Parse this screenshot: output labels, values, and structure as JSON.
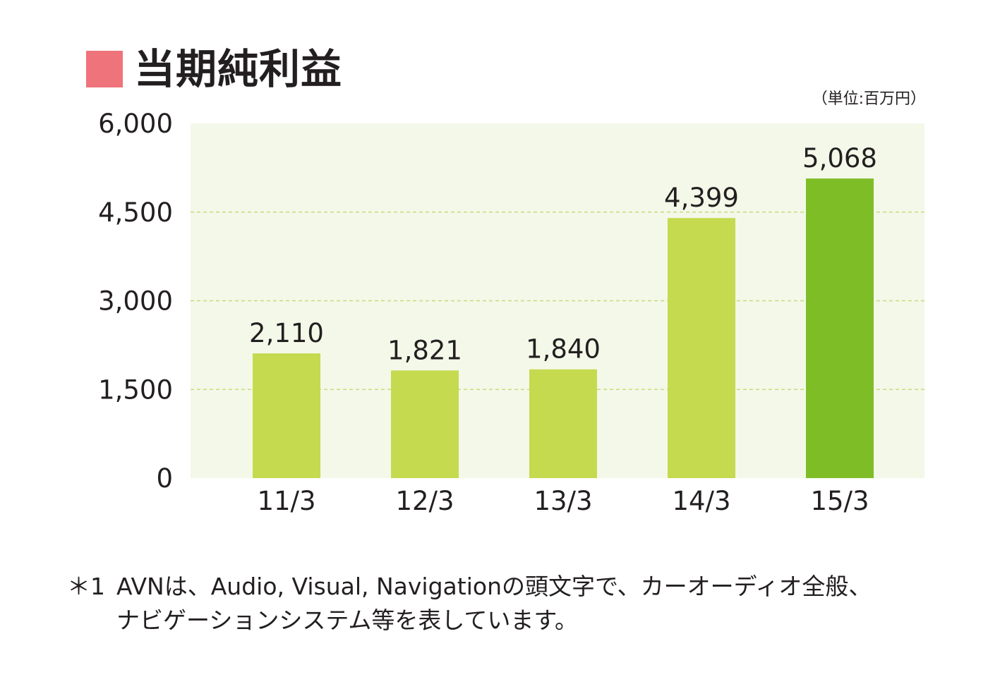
{
  "title": "当期純利益",
  "unit_label": "（単位:百万円）",
  "colors": {
    "title_marker": "#ee737a",
    "plot_background": "#f3f8e9",
    "gridline": "#c8dc7a",
    "bar": "#c5da4f",
    "bar_highlight": "#7fbd27",
    "text": "#231f20"
  },
  "chart_data": {
    "type": "bar",
    "title": "当期純利益",
    "xlabel": "",
    "ylabel": "",
    "categories": [
      "11/3",
      "12/3",
      "13/3",
      "14/3",
      "15/3"
    ],
    "values": [
      2110,
      1821,
      1840,
      4399,
      5068
    ],
    "data_labels": [
      "2,110",
      "1,821",
      "1,840",
      "4,399",
      "5,068"
    ],
    "highlight_index": 4,
    "ylim": [
      0,
      6000
    ],
    "yticks": [
      0,
      1500,
      3000,
      4500,
      6000
    ],
    "ytick_labels": [
      "0",
      "1,500",
      "3,000",
      "4,500",
      "6,000"
    ],
    "grid": "dashed horizontal",
    "legend": "none"
  },
  "footnote": {
    "mark": "＊1",
    "lines": [
      "AVNは、Audio, Visual, Navigationの頭文字で、カーオーディオ全般、",
      "ナビゲーションシステム等を表しています。"
    ]
  }
}
